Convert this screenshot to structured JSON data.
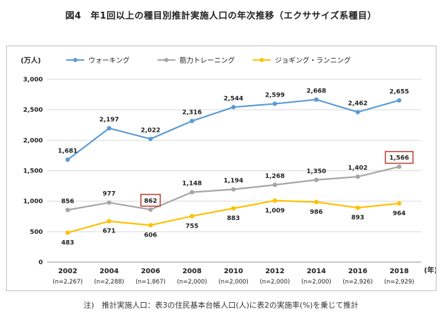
{
  "figure": {
    "title": "図4　年1回以上の種目別推計実施人口の年次推移（エクササイズ系種目）",
    "note": "注)　推計実施人口：表3の住民基本台帳人口(人)に表2の実施率(%)を乗じて推計"
  },
  "chart_data": {
    "type": "line",
    "ylabel": "(万人)",
    "xlabel": "(年)",
    "ylim": [
      0,
      3000
    ],
    "yticks": [
      0,
      500,
      1000,
      1500,
      2000,
      2500,
      3000
    ],
    "ytick_labels": [
      "0",
      "500",
      "1,000",
      "1,500",
      "2,000",
      "2,500",
      "3,000"
    ],
    "categories": [
      "2002",
      "2004",
      "2006",
      "2008",
      "2010",
      "2012",
      "2014",
      "2016",
      "2018"
    ],
    "sample_sizes": [
      "(n=2,267)",
      "(n=2,288)",
      "(n=1,867)",
      "(n=2,000)",
      "(n=2,000)",
      "(n=2,000)",
      "(n=2,000)",
      "(n=2,926)",
      "(n=2,929)"
    ],
    "legend_position": "top",
    "grid": true,
    "series": [
      {
        "name": "ウォーキング",
        "color": "#5b9bd5",
        "values": [
          1681,
          2197,
          2022,
          2316,
          2544,
          2599,
          2668,
          2462,
          2655
        ],
        "labels": [
          "1,681",
          "2,197",
          "2,022",
          "2,316",
          "2,544",
          "2,599",
          "2,668",
          "2,462",
          "2,655"
        ],
        "label_side": [
          "above",
          "above",
          "above",
          "above",
          "above",
          "above",
          "above",
          "above",
          "above"
        ]
      },
      {
        "name": "筋力トレーニング",
        "color": "#a5a5a5",
        "values": [
          856,
          977,
          862,
          1148,
          1194,
          1268,
          1350,
          1402,
          1566
        ],
        "labels": [
          "856",
          "977",
          "862",
          "1,148",
          "1,194",
          "1,268",
          "1,350",
          "1,402",
          "1,566"
        ],
        "label_side": [
          "above",
          "above",
          "above",
          "above",
          "above",
          "above",
          "above",
          "above",
          "above"
        ]
      },
      {
        "name": "ジョギング・ランニング",
        "color": "#ffc000",
        "values": [
          483,
          671,
          606,
          755,
          883,
          1009,
          986,
          893,
          964
        ],
        "labels": [
          "483",
          "671",
          "606",
          "755",
          "883",
          "1,009",
          "986",
          "893",
          "964"
        ],
        "label_side": [
          "below",
          "below",
          "below",
          "below",
          "below",
          "below",
          "below",
          "below",
          "below"
        ]
      }
    ],
    "highlighted_labels": [
      {
        "series": 1,
        "index": 2,
        "box_color": "#c0392b"
      },
      {
        "series": 1,
        "index": 8,
        "box_color": "#c0392b"
      }
    ]
  }
}
